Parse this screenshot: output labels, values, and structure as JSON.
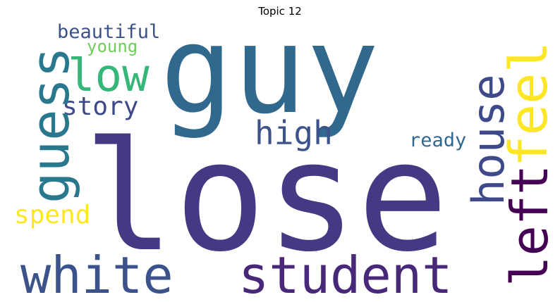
{
  "title": "Topic 12",
  "words": [
    {
      "id": "lose",
      "text": "lose",
      "color": "#443983"
    },
    {
      "id": "guy",
      "text": "guy",
      "color": "#31688e"
    },
    {
      "id": "white",
      "text": "white",
      "color": "#3b528b"
    },
    {
      "id": "student",
      "text": "student",
      "color": "#482878"
    },
    {
      "id": "low",
      "text": "low",
      "color": "#35b779"
    },
    {
      "id": "guess",
      "text": "guess",
      "color": "#2a788e"
    },
    {
      "id": "house",
      "text": "house",
      "color": "#3e4989"
    },
    {
      "id": "feel",
      "text": "feel",
      "color": "#fde725"
    },
    {
      "id": "left",
      "text": "left",
      "color": "#440154"
    },
    {
      "id": "high",
      "text": "high",
      "color": "#3b528b"
    },
    {
      "id": "story",
      "text": "story",
      "color": "#3e4989"
    },
    {
      "id": "spend",
      "text": "spend",
      "color": "#fde725"
    },
    {
      "id": "beautiful",
      "text": "beautiful",
      "color": "#3b528b"
    },
    {
      "id": "young",
      "text": "young",
      "color": "#6ece58"
    },
    {
      "id": "ready",
      "text": "ready",
      "color": "#31688e"
    }
  ]
}
